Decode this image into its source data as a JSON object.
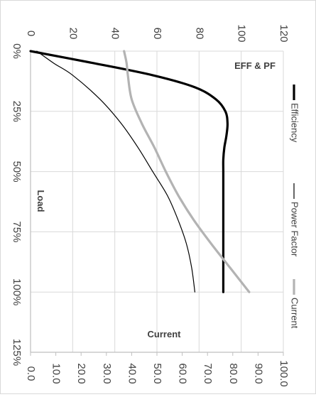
{
  "chart_data": {
    "type": "line",
    "title": "",
    "xlabel": "Load",
    "ylabel_left": "EFF & PF",
    "ylabel_right": "Current",
    "x_ticks": [
      "0%",
      "25%",
      "50%",
      "75%",
      "100%",
      "125%"
    ],
    "x_range": [
      0,
      125
    ],
    "y_left_ticks": [
      "0",
      "20",
      "40",
      "60",
      "80",
      "100",
      "120"
    ],
    "y_left_range": [
      0,
      120
    ],
    "y_right_ticks": [
      "0.0",
      "10.0",
      "20.0",
      "30.0",
      "40.0",
      "50.0",
      "60.0",
      "70.0",
      "80.0",
      "90.0",
      "100.0"
    ],
    "y_right_range": [
      0,
      100
    ],
    "grid": true,
    "legend_position": "right",
    "series": [
      {
        "name": "Efficiency",
        "axis": "left",
        "color": "#000000",
        "width": 3.2,
        "x": [
          0,
          5,
          10,
          15,
          20,
          25,
          30,
          35,
          40,
          45,
          50,
          60,
          75,
          90,
          100
        ],
        "y": [
          0,
          30,
          58,
          78,
          88,
          92.5,
          93.5,
          93,
          92,
          91.5,
          91.5,
          91.5,
          91.5,
          91.5,
          91.5
        ]
      },
      {
        "name": "Power Factor",
        "axis": "left",
        "color": "#000000",
        "width": 1.2,
        "x": [
          0,
          5,
          10,
          20,
          30,
          40,
          50,
          60,
          70,
          80,
          90,
          100
        ],
        "y": [
          3,
          11,
          20,
          33,
          43,
          51,
          58,
          65,
          70,
          74,
          76.5,
          78
        ]
      },
      {
        "name": "Current",
        "axis": "right",
        "color": "#b3b3b3",
        "width": 3.2,
        "x": [
          0,
          5,
          10,
          20,
          30,
          40,
          50,
          60,
          70,
          80,
          90,
          100
        ],
        "y": [
          37,
          38,
          38.5,
          40,
          44,
          49,
          53.5,
          58.5,
          64.5,
          71.5,
          79,
          86.5
        ]
      }
    ]
  }
}
